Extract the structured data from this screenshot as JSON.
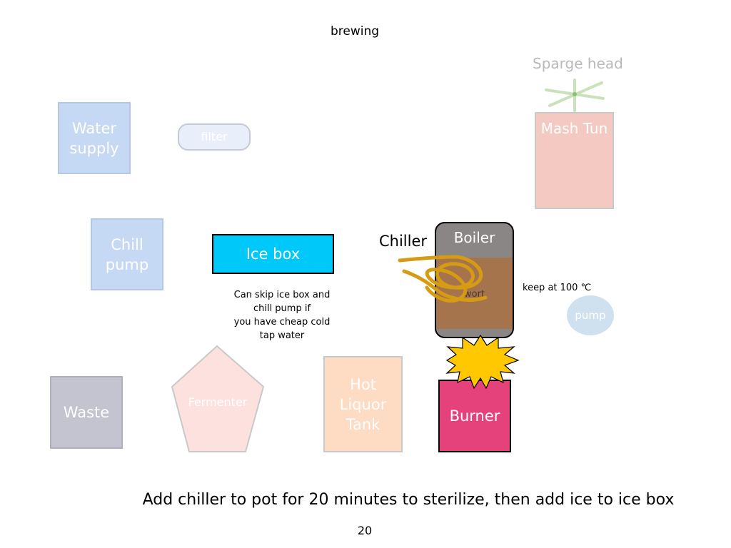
{
  "slide": {
    "title": "brewing",
    "caption": "Add chiller to pot for 20 minutes to sterilize, then add ice to ice box",
    "page_number": "20"
  },
  "nodes": {
    "water_supply": {
      "line1": "Water",
      "line2": "supply"
    },
    "filter": "filter",
    "chill_pump": {
      "line1": "Chill",
      "line2": "pump"
    },
    "ice_box": "Ice box",
    "ice_box_note": [
      "Can skip ice box and",
      "chill pump if",
      "you have cheap cold",
      "tap water"
    ],
    "chiller": "Chiller",
    "boiler": "Boiler",
    "wort": "wort",
    "keep_temp": "keep at 100 ℃",
    "pump": "pump",
    "sparge_head": "Sparge head",
    "mash_tun": "Mash Tun",
    "waste": "Waste",
    "fermenter": "Fermenter",
    "hlt": {
      "line1": "Hot",
      "line2": "Liquor",
      "line3": "Tank"
    },
    "burner": "Burner"
  },
  "colors": {
    "water_supply": "#c5d8f4",
    "chill_pump": "#c5d8f4",
    "ice_box": "#00c8f8",
    "boiler_body": "#8a8685",
    "wort": "#a5744d",
    "chiller_coil": "#d59b12",
    "flame": "#ffc800",
    "burner": "#e5417a",
    "mash_tun": "#f3c9c1",
    "sparge_head": "#a8d08d",
    "waste": "#c4c3d0",
    "fermenter": "#fde1df",
    "hlt": "#fedcc3",
    "pump": "#cfe1ee",
    "filter": "#e9eefb"
  }
}
